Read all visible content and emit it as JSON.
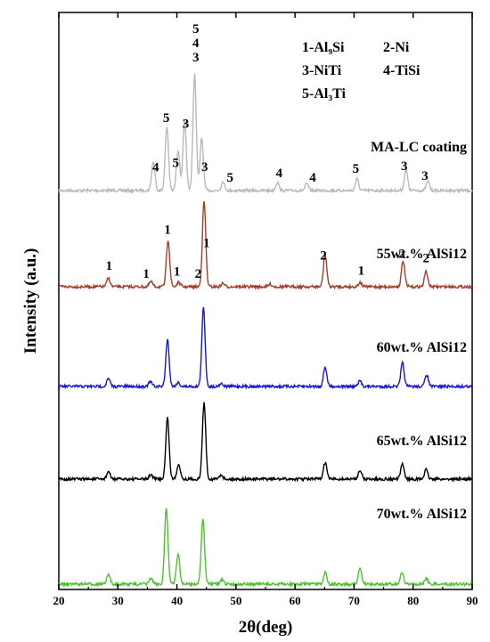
{
  "chart_data": {
    "type": "line",
    "xlabel": "2θ(deg)",
    "ylabel": "Intensity (a.u.)",
    "xlim": [
      20,
      90
    ],
    "x_ticks": [
      "20",
      "30",
      "40",
      "50",
      "60",
      "70",
      "80",
      "90"
    ],
    "grid": false,
    "legend": {
      "placement": "top-right",
      "entries": [
        "1-Al₉Si",
        "2-Ni",
        "3-NiTi",
        "4-TiSi",
        "5-Al₃Ti"
      ]
    },
    "series": [
      {
        "name": "MA-LC coating",
        "color": "#b9b9b9",
        "peaks": [
          [
            36,
            0.25
          ],
          [
            38.3,
            0.55
          ],
          [
            40.2,
            0.35
          ],
          [
            41.3,
            0.6
          ],
          [
            43,
            1.0
          ],
          [
            44.2,
            0.45
          ],
          [
            47.8,
            0.08
          ],
          [
            57,
            0.07
          ],
          [
            62,
            0.06
          ],
          [
            70.5,
            0.1
          ],
          [
            78.8,
            0.18
          ],
          [
            82.5,
            0.08
          ]
        ],
        "peak_labels": [
          {
            "x": 36.4,
            "text": "4"
          },
          {
            "x": 38.2,
            "text": "5"
          },
          {
            "x": 39.8,
            "text": "5"
          },
          {
            "x": 41.5,
            "text": "3"
          },
          {
            "x": 43.2,
            "text": "5"
          },
          {
            "x": 43.2,
            "text": "4"
          },
          {
            "x": 43.2,
            "text": "3"
          },
          {
            "x": 44.7,
            "text": "3"
          },
          {
            "x": 49.0,
            "text": "5"
          },
          {
            "x": 57.3,
            "text": "4"
          },
          {
            "x": 63.0,
            "text": "4"
          },
          {
            "x": 70.3,
            "text": "5"
          },
          {
            "x": 78.5,
            "text": "3"
          },
          {
            "x": 82.0,
            "text": "3"
          }
        ]
      },
      {
        "name": "55wt.% AlSi12",
        "color": "#a3402b",
        "peaks": [
          [
            28.4,
            0.1
          ],
          [
            35.6,
            0.06
          ],
          [
            38.5,
            0.55
          ],
          [
            40.3,
            0.05
          ],
          [
            44.6,
            1.0
          ],
          [
            47.8,
            0.04
          ],
          [
            55.8,
            0.03
          ],
          [
            65.1,
            0.38
          ],
          [
            71,
            0.05
          ],
          [
            78.3,
            0.3
          ],
          [
            82.2,
            0.18
          ]
        ],
        "peak_labels": [
          {
            "x": 28.5,
            "text": "1"
          },
          {
            "x": 34.8,
            "text": "1"
          },
          {
            "x": 38.4,
            "text": "1"
          },
          {
            "x": 40.0,
            "text": "1"
          },
          {
            "x": 43.6,
            "text": "2"
          },
          {
            "x": 45.0,
            "text": "1"
          },
          {
            "x": 64.8,
            "text": "2"
          },
          {
            "x": 71.2,
            "text": "1"
          },
          {
            "x": 78.1,
            "text": "2"
          },
          {
            "x": 82.2,
            "text": "2"
          }
        ]
      },
      {
        "name": "60wt.% AlSi12",
        "color": "#1616d8",
        "peaks": [
          [
            28.4,
            0.1
          ],
          [
            35.5,
            0.06
          ],
          [
            38.4,
            0.6
          ],
          [
            40.2,
            0.05
          ],
          [
            44.5,
            1.0
          ],
          [
            47.5,
            0.04
          ],
          [
            65.1,
            0.25
          ],
          [
            71,
            0.07
          ],
          [
            78.2,
            0.3
          ],
          [
            82.3,
            0.15
          ]
        ],
        "peak_labels": []
      },
      {
        "name": "65wt.% AlSi12",
        "color": "#000000",
        "peaks": [
          [
            28.4,
            0.1
          ],
          [
            35.6,
            0.06
          ],
          [
            38.4,
            0.8
          ],
          [
            40.3,
            0.2
          ],
          [
            44.6,
            1.0
          ],
          [
            47.5,
            0.06
          ],
          [
            65.1,
            0.22
          ],
          [
            71,
            0.12
          ],
          [
            78.2,
            0.2
          ],
          [
            82.2,
            0.12
          ]
        ],
        "peak_labels": []
      },
      {
        "name": "70wt.% AlSi12",
        "color": "#4cc42d",
        "peaks": [
          [
            28.4,
            0.12
          ],
          [
            35.6,
            0.08
          ],
          [
            38.2,
            1.0
          ],
          [
            40.2,
            0.4
          ],
          [
            44.4,
            0.85
          ],
          [
            47.6,
            0.06
          ],
          [
            65.1,
            0.15
          ],
          [
            71,
            0.2
          ],
          [
            78.1,
            0.15
          ],
          [
            82.2,
            0.08
          ]
        ],
        "peak_labels": []
      }
    ]
  }
}
